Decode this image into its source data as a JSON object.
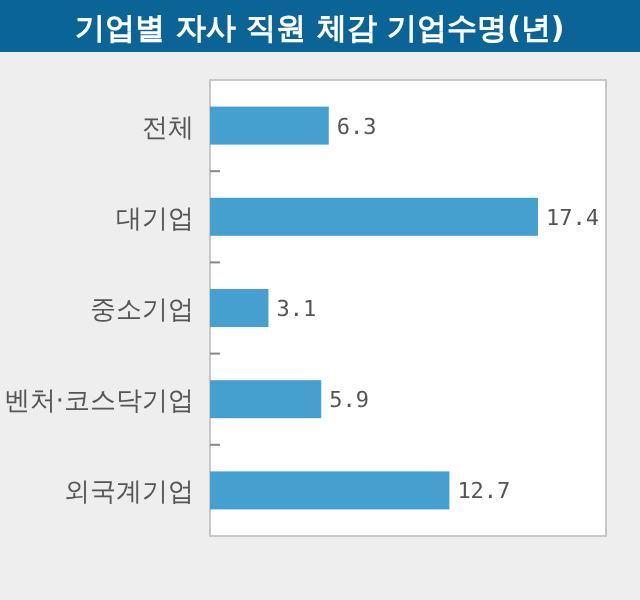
{
  "chart_data": {
    "type": "bar",
    "orientation": "horizontal",
    "title": "기업별 자사 직원 체감 기업수명(년)",
    "categories": [
      "전체",
      "대기업",
      "중소기업",
      "벤처·코스닥기업",
      "외국계기업"
    ],
    "values": [
      6.3,
      17.4,
      3.1,
      5.9,
      12.7
    ],
    "color": "#459fcf",
    "data_labels": true
  }
}
